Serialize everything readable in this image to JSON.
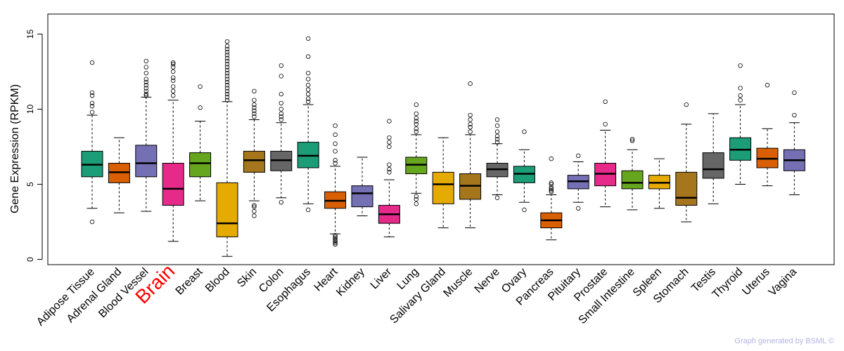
{
  "chart_data": {
    "type": "boxplot",
    "title": "",
    "xlabel": "",
    "ylabel": "Gene Expression (RPKM)",
    "ylim": [
      0,
      15
    ],
    "yticks": [
      0,
      5,
      10,
      15
    ],
    "highlight_category": "Brain",
    "highlight_color": "#ff0000",
    "categories": [
      {
        "name": "Adipose Tissue",
        "color": "#1b9e77",
        "min": 3.4,
        "q1": 5.5,
        "median": 6.3,
        "q3": 7.2,
        "max": 9.6,
        "outliers": [
          2.5,
          9.8,
          10.2,
          10.4,
          10.9,
          11.1,
          13.1
        ]
      },
      {
        "name": "Adrenal Gland",
        "color": "#d95f02",
        "min": 3.1,
        "q1": 5.1,
        "median": 5.8,
        "q3": 6.4,
        "max": 8.1,
        "outliers": []
      },
      {
        "name": "Blood Vessel",
        "color": "#7570b3",
        "min": 3.2,
        "q1": 5.5,
        "median": 6.4,
        "q3": 7.6,
        "max": 10.8,
        "outliers": [
          10.9,
          11.0,
          11.2,
          11.4,
          11.6,
          11.8,
          12.0,
          12.4,
          12.8,
          13.2
        ]
      },
      {
        "name": "Brain",
        "color": "#e7298a",
        "min": 1.2,
        "q1": 3.6,
        "median": 4.7,
        "q3": 6.4,
        "max": 10.6,
        "outliers": [
          10.9,
          11.2,
          11.5,
          11.9,
          12.1,
          12.5,
          12.8,
          13.0,
          13.1
        ]
      },
      {
        "name": "Breast",
        "color": "#66a61e",
        "min": 3.9,
        "q1": 5.5,
        "median": 6.4,
        "q3": 7.1,
        "max": 9.2,
        "outliers": [
          10.1,
          11.5
        ]
      },
      {
        "name": "Blood",
        "color": "#e6ab02",
        "min": 0.2,
        "q1": 1.5,
        "median": 2.4,
        "q3": 5.1,
        "max": 10.5,
        "outliers": [
          10.6,
          10.8,
          11.0,
          11.2,
          11.4,
          11.6,
          11.8,
          12.0,
          12.2,
          12.4,
          12.6,
          12.8,
          13.0,
          13.2,
          13.4,
          13.6,
          13.8,
          14.0,
          14.2,
          14.5
        ]
      },
      {
        "name": "Skin",
        "color": "#a6761d",
        "min": 3.9,
        "q1": 5.8,
        "median": 6.6,
        "q3": 7.2,
        "max": 9.3,
        "outliers": [
          2.9,
          3.2,
          3.5,
          3.6,
          9.5,
          9.7,
          9.9,
          10.1,
          10.3,
          10.6,
          11.2
        ]
      },
      {
        "name": "Colon",
        "color": "#666666",
        "min": 4.1,
        "q1": 5.9,
        "median": 6.6,
        "q3": 7.2,
        "max": 9.1,
        "outliers": [
          3.8,
          9.3,
          9.5,
          9.7,
          10.0,
          10.4,
          11.0,
          12.2,
          12.9
        ]
      },
      {
        "name": "Esophagus",
        "color": "#1b9e77",
        "min": 3.7,
        "q1": 6.1,
        "median": 6.9,
        "q3": 7.8,
        "max": 10.3,
        "outliers": [
          3.3,
          10.5,
          10.7,
          11.0,
          11.3,
          11.6,
          12.0,
          12.4,
          13.5,
          14.7
        ]
      },
      {
        "name": "Heart",
        "color": "#d95f02",
        "min": 1.7,
        "q1": 3.4,
        "median": 3.9,
        "q3": 4.5,
        "max": 6.2,
        "outliers": [
          1.0,
          1.1,
          1.2,
          1.3,
          1.4,
          1.5,
          1.6,
          6.4,
          6.6,
          7.2,
          7.7,
          8.3,
          8.9
        ]
      },
      {
        "name": "Kidney",
        "color": "#7570b3",
        "min": 2.9,
        "q1": 3.5,
        "median": 4.4,
        "q3": 4.9,
        "max": 6.8,
        "outliers": []
      },
      {
        "name": "Liver",
        "color": "#e7298a",
        "min": 1.5,
        "q1": 2.4,
        "median": 3.0,
        "q3": 3.6,
        "max": 5.3,
        "outliers": [
          5.8,
          6.0,
          6.3,
          7.5,
          7.8,
          8.1,
          9.2
        ]
      },
      {
        "name": "Lung",
        "color": "#66a61e",
        "min": 4.4,
        "q1": 5.7,
        "median": 6.3,
        "q3": 6.8,
        "max": 8.3,
        "outliers": [
          3.7,
          4.0,
          4.2,
          8.5,
          8.7,
          9.0,
          9.2,
          9.4,
          9.7,
          10.3
        ]
      },
      {
        "name": "Salivary Gland",
        "color": "#e6ab02",
        "min": 2.1,
        "q1": 3.7,
        "median": 5.0,
        "q3": 5.8,
        "max": 8.1,
        "outliers": []
      },
      {
        "name": "Muscle",
        "color": "#a6761d",
        "min": 2.1,
        "q1": 4.0,
        "median": 4.9,
        "q3": 5.7,
        "max": 8.3,
        "outliers": [
          8.5,
          8.8,
          9.0,
          9.3,
          9.6,
          11.7
        ]
      },
      {
        "name": "Nerve",
        "color": "#666666",
        "min": 4.3,
        "q1": 5.5,
        "median": 6.0,
        "q3": 6.4,
        "max": 7.7,
        "outliers": [
          4.1,
          7.8,
          8.0,
          8.2,
          8.5,
          8.9,
          9.3
        ]
      },
      {
        "name": "Ovary",
        "color": "#1b9e77",
        "min": 3.8,
        "q1": 5.1,
        "median": 5.7,
        "q3": 6.2,
        "max": 7.3,
        "outliers": [
          3.3,
          8.5
        ]
      },
      {
        "name": "Pancreas",
        "color": "#d95f02",
        "min": 1.3,
        "q1": 2.1,
        "median": 2.6,
        "q3": 3.1,
        "max": 4.3,
        "outliers": [
          4.5,
          4.6,
          4.7,
          4.8,
          5.0,
          5.1,
          6.7
        ]
      },
      {
        "name": "Pituitary",
        "color": "#7570b3",
        "min": 3.8,
        "q1": 4.7,
        "median": 5.2,
        "q3": 5.6,
        "max": 6.5,
        "outliers": [
          3.4,
          6.9
        ]
      },
      {
        "name": "Prostate",
        "color": "#e7298a",
        "min": 3.5,
        "q1": 4.9,
        "median": 5.7,
        "q3": 6.4,
        "max": 8.6,
        "outliers": [
          9.0,
          10.5
        ]
      },
      {
        "name": "Small Intestine",
        "color": "#66a61e",
        "min": 3.3,
        "q1": 4.7,
        "median": 5.1,
        "q3": 5.9,
        "max": 7.3,
        "outliers": [
          7.9,
          8.0
        ]
      },
      {
        "name": "Spleen",
        "color": "#e6ab02",
        "min": 3.4,
        "q1": 4.7,
        "median": 5.1,
        "q3": 5.6,
        "max": 6.7,
        "outliers": []
      },
      {
        "name": "Stomach",
        "color": "#a6761d",
        "min": 2.5,
        "q1": 3.6,
        "median": 4.1,
        "q3": 5.8,
        "max": 9.0,
        "outliers": [
          10.3
        ]
      },
      {
        "name": "Testis",
        "color": "#666666",
        "min": 3.7,
        "q1": 5.4,
        "median": 6.0,
        "q3": 7.1,
        "max": 9.7,
        "outliers": []
      },
      {
        "name": "Thyroid",
        "color": "#1b9e77",
        "min": 5.0,
        "q1": 6.6,
        "median": 7.3,
        "q3": 8.1,
        "max": 10.3,
        "outliers": [
          10.6,
          10.9,
          11.4,
          12.9
        ]
      },
      {
        "name": "Uterus",
        "color": "#d95f02",
        "min": 4.9,
        "q1": 6.1,
        "median": 6.7,
        "q3": 7.4,
        "max": 8.7,
        "outliers": [
          11.6
        ]
      },
      {
        "name": "Vagina",
        "color": "#7570b3",
        "min": 4.3,
        "q1": 5.9,
        "median": 6.6,
        "q3": 7.3,
        "max": 9.1,
        "outliers": [
          9.6,
          11.1
        ]
      }
    ]
  },
  "footer": {
    "credit": "Graph generated by BSML ©"
  }
}
